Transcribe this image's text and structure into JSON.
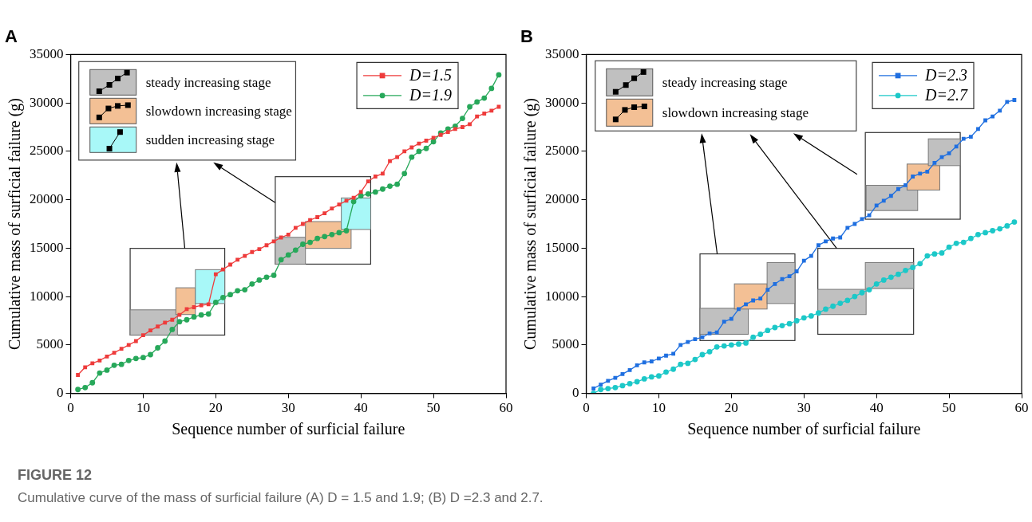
{
  "chart_data": [
    {
      "type": "line",
      "title": "A",
      "xlabel": "Sequence number of surficial failure",
      "ylabel": "Cumulative mass of surficial failure (g)",
      "xlim": [
        0,
        60
      ],
      "xticks": [
        0,
        10,
        20,
        30,
        40,
        50,
        60
      ],
      "ylim": [
        0,
        35000
      ],
      "yticks": [
        0,
        5000,
        10000,
        15000,
        20000,
        25000,
        30000,
        35000
      ],
      "legend": "top right",
      "annotations": [
        "steady increasing stage",
        "slowdown increasing stage",
        "sudden increasing stage"
      ],
      "x": [
        1,
        2,
        3,
        4,
        5,
        6,
        7,
        8,
        9,
        10,
        11,
        12,
        13,
        14,
        15,
        16,
        17,
        18,
        19,
        20,
        21,
        22,
        23,
        24,
        25,
        26,
        27,
        28,
        29,
        30,
        31,
        32,
        33,
        34,
        35,
        36,
        37,
        38,
        39,
        40,
        41,
        42,
        43,
        44,
        45,
        46,
        47,
        48,
        49,
        50,
        51,
        52,
        53,
        54,
        55,
        56,
        57,
        58,
        59
      ],
      "series": [
        {
          "name": "D=1.5",
          "color": "#ee3b3b",
          "marker": "square",
          "values": [
            1900,
            2700,
            3100,
            3400,
            3800,
            4200,
            4600,
            5000,
            5400,
            6000,
            6500,
            6900,
            7300,
            7600,
            8100,
            8700,
            8900,
            9100,
            9200,
            12300,
            12800,
            13300,
            13800,
            14200,
            14600,
            14900,
            15300,
            15700,
            16100,
            16400,
            17100,
            17500,
            17900,
            18200,
            18600,
            19100,
            19500,
            19900,
            20200,
            20800,
            21900,
            22400,
            22700,
            24000,
            24400,
            25000,
            25400,
            25800,
            26100,
            26400,
            26700,
            27000,
            27300,
            27500,
            27800,
            28600,
            28900,
            29200,
            29600
          ]
        },
        {
          "name": "D=1.9",
          "color": "#27a85a",
          "marker": "circle",
          "values": [
            400,
            600,
            1100,
            2100,
            2400,
            2900,
            3000,
            3400,
            3600,
            3700,
            4000,
            4700,
            5400,
            6600,
            7400,
            7600,
            7900,
            8100,
            8200,
            9400,
            9900,
            10200,
            10600,
            10700,
            11300,
            11700,
            12000,
            12200,
            13800,
            14300,
            14800,
            15400,
            15600,
            16000,
            16200,
            16400,
            16600,
            16800,
            19800,
            20400,
            20600,
            20800,
            21100,
            21400,
            21600,
            22700,
            24400,
            25000,
            25300,
            26000,
            26900,
            27300,
            27600,
            28400,
            29600,
            30100,
            30500,
            31500,
            32900
          ]
        }
      ]
    },
    {
      "type": "line",
      "title": "B",
      "xlabel": "Sequence number of surficial failure",
      "ylabel": "Cumulative mass of surficial failure (g)",
      "xlim": [
        0,
        60
      ],
      "xticks": [
        0,
        10,
        20,
        30,
        40,
        50,
        60
      ],
      "ylim": [
        0,
        35000
      ],
      "yticks": [
        0,
        5000,
        10000,
        15000,
        20000,
        25000,
        30000,
        35000
      ],
      "legend": "top right",
      "annotations": [
        "steady increasing stage",
        "slowdown increasing stage"
      ],
      "x": [
        1,
        2,
        3,
        4,
        5,
        6,
        7,
        8,
        9,
        10,
        11,
        12,
        13,
        14,
        15,
        16,
        17,
        18,
        19,
        20,
        21,
        22,
        23,
        24,
        25,
        26,
        27,
        28,
        29,
        30,
        31,
        32,
        33,
        34,
        35,
        36,
        37,
        38,
        39,
        40,
        41,
        42,
        43,
        44,
        45,
        46,
        47,
        48,
        49,
        50,
        51,
        52,
        53,
        54,
        55,
        56,
        57,
        58,
        59
      ],
      "series": [
        {
          "name": "D=2.3",
          "color": "#1f6fe0",
          "marker": "square",
          "values": [
            500,
            900,
            1300,
            1600,
            2000,
            2400,
            2900,
            3200,
            3300,
            3600,
            3900,
            4100,
            5000,
            5300,
            5600,
            5800,
            6200,
            6300,
            7400,
            7700,
            8700,
            9200,
            9600,
            9800,
            10700,
            11300,
            11800,
            12100,
            12600,
            13700,
            14200,
            15300,
            15700,
            16000,
            16100,
            17100,
            17500,
            18000,
            18400,
            19400,
            19900,
            20400,
            21100,
            21500,
            22400,
            22700,
            22900,
            23800,
            24400,
            24800,
            25500,
            26300,
            26500,
            27300,
            28200,
            28600,
            29200,
            30100,
            30300
          ]
        },
        {
          "name": "D=2.7",
          "color": "#1cc8c8",
          "marker": "circle",
          "values": [
            0,
            400,
            500,
            600,
            800,
            1000,
            1200,
            1500,
            1700,
            1800,
            2200,
            2500,
            3000,
            3100,
            3500,
            4000,
            4300,
            4800,
            4900,
            5000,
            5100,
            5200,
            5800,
            6100,
            6500,
            6800,
            7000,
            7200,
            7500,
            7800,
            8000,
            8300,
            8700,
            9000,
            9300,
            9600,
            10000,
            10400,
            10700,
            11300,
            11700,
            12000,
            12300,
            12700,
            13000,
            13400,
            14200,
            14400,
            14500,
            15100,
            15500,
            15600,
            16000,
            16400,
            16600,
            16800,
            17000,
            17300,
            17700
          ]
        }
      ]
    },
    {
      "type": "other",
      "title": "FIGURE 12",
      "subtitle": "Cumulative curve of the mass of surficial failure (A) D = 1.5 and 1.9; (B) D =2.3 and 2.7."
    }
  ]
}
